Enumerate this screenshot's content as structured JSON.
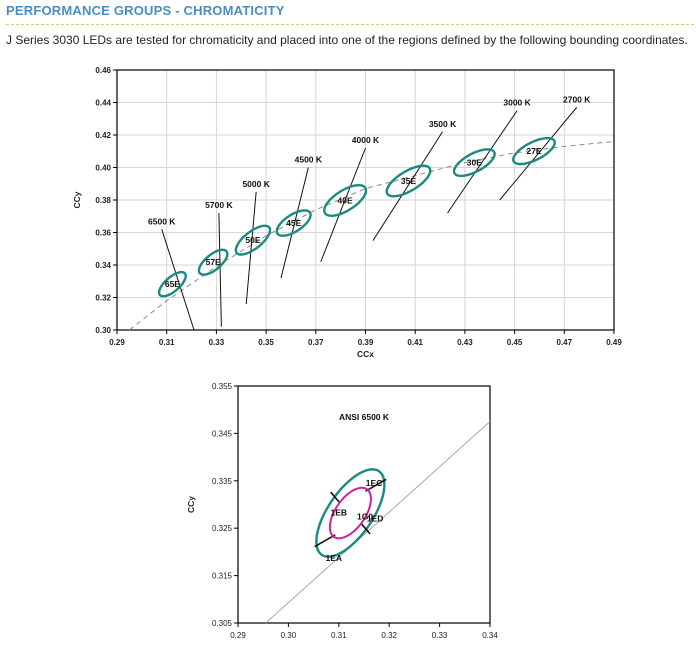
{
  "header": {
    "title": "PERFORMANCE GROUPS - CHROMATICITY"
  },
  "intro": {
    "text": "J Series 3030 LEDs are tested for chromaticity and placed into one of the regions defined by the following bounding coordinates."
  },
  "colors": {
    "accent": "#4a8dc3",
    "teal": "#1a8a82",
    "magenta": "#d0219a",
    "grid": "#d6d6d6"
  },
  "chart_data": [
    {
      "type": "scatter",
      "title": "",
      "xlabel": "CCx",
      "ylabel": "CCy",
      "xlim": [
        0.29,
        0.49
      ],
      "ylim": [
        0.3,
        0.46
      ],
      "xticks": [
        0.29,
        0.31,
        0.33,
        0.35,
        0.37,
        0.39,
        0.41,
        0.43,
        0.45,
        0.47,
        0.49
      ],
      "xtick_labels": [
        "0.29",
        "0.31",
        "0.33",
        "0.35",
        "0.37",
        "0.39",
        "0.41",
        "0.43",
        "0.45",
        "0.47",
        "0.49"
      ],
      "yticks": [
        0.3,
        0.32,
        0.34,
        0.36,
        0.38,
        0.4,
        0.42,
        0.44,
        0.46
      ],
      "ytick_labels": [
        "0.30",
        "0.32",
        "0.34",
        "0.36",
        "0.38",
        "0.40",
        "0.42",
        "0.44",
        "0.46"
      ],
      "grid": true,
      "bins": [
        {
          "name": "65E",
          "cx": 0.3123,
          "cy": 0.3282,
          "a": 0.0085,
          "b": 0.0034,
          "angle": 58
        },
        {
          "name": "57E",
          "cx": 0.3287,
          "cy": 0.3417,
          "a": 0.0088,
          "b": 0.0037,
          "angle": 57
        },
        {
          "name": "50E",
          "cx": 0.3447,
          "cy": 0.3553,
          "a": 0.0104,
          "b": 0.0042,
          "angle": 55
        },
        {
          "name": "45E",
          "cx": 0.3611,
          "cy": 0.3658,
          "a": 0.0094,
          "b": 0.0043,
          "angle": 51
        },
        {
          "name": "40E",
          "cx": 0.3818,
          "cy": 0.3797,
          "a": 0.0115,
          "b": 0.0052,
          "angle": 50
        },
        {
          "name": "35E",
          "cx": 0.4073,
          "cy": 0.3917,
          "a": 0.0118,
          "b": 0.0051,
          "angle": 48
        },
        {
          "name": "30E",
          "cx": 0.4338,
          "cy": 0.403,
          "a": 0.0105,
          "b": 0.0048,
          "angle": 45
        },
        {
          "name": "27E",
          "cx": 0.4578,
          "cy": 0.4101,
          "a": 0.0105,
          "b": 0.0048,
          "angle": 43
        }
      ],
      "blackbody_locus": [
        [
          0.295,
          0.3
        ],
        [
          0.31,
          0.318
        ],
        [
          0.33,
          0.339
        ],
        [
          0.35,
          0.358
        ],
        [
          0.37,
          0.374
        ],
        [
          0.39,
          0.387
        ],
        [
          0.41,
          0.395
        ],
        [
          0.43,
          0.403
        ],
        [
          0.45,
          0.409
        ],
        [
          0.47,
          0.413
        ],
        [
          0.49,
          0.416
        ]
      ],
      "cct_labels": [
        {
          "text": "6500 K",
          "line": [
            [
              0.321,
              0.3
            ],
            [
              0.308,
              0.362
            ]
          ]
        },
        {
          "text": "5700 K",
          "line": [
            [
              0.332,
              0.302
            ],
            [
              0.331,
              0.372
            ]
          ]
        },
        {
          "text": "5000 K",
          "line": [
            [
              0.342,
              0.316
            ],
            [
              0.346,
              0.385
            ]
          ]
        },
        {
          "text": "4500 K",
          "line": [
            [
              0.356,
              0.332
            ],
            [
              0.367,
              0.4
            ]
          ]
        },
        {
          "text": "4000 K",
          "line": [
            [
              0.372,
              0.342
            ],
            [
              0.39,
              0.412
            ]
          ]
        },
        {
          "text": "3500 K",
          "line": [
            [
              0.393,
              0.355
            ],
            [
              0.421,
              0.422
            ]
          ]
        },
        {
          "text": "3000 K",
          "line": [
            [
              0.423,
              0.372
            ],
            [
              0.451,
              0.435
            ]
          ]
        },
        {
          "text": "2700 K",
          "line": [
            [
              0.444,
              0.38
            ],
            [
              0.475,
              0.437
            ]
          ]
        }
      ]
    },
    {
      "type": "scatter",
      "title": "ANSI 6500 K",
      "xlabel": "",
      "ylabel": "CCy",
      "xlim": [
        0.29,
        0.34
      ],
      "ylim": [
        0.305,
        0.355
      ],
      "xticks": [
        0.29,
        0.3,
        0.31,
        0.32,
        0.33,
        0.34
      ],
      "xtick_labels": [
        "0.29",
        "0.30",
        "0.31",
        "0.32",
        "0.33",
        "0.34"
      ],
      "yticks": [
        0.305,
        0.315,
        0.325,
        0.335,
        0.345,
        0.355
      ],
      "ytick_labels": [
        "0.305",
        "0.315",
        "0.325",
        "0.335",
        "0.345",
        "0.355"
      ],
      "grid": false,
      "outer_ellipse": {
        "cx": 0.3123,
        "cy": 0.3282,
        "a": 0.0105,
        "b": 0.0045,
        "angle": 58
      },
      "inner_ellipse": {
        "name": "1G0",
        "cx": 0.3123,
        "cy": 0.3282,
        "a": 0.006,
        "b": 0.003,
        "angle": 58
      },
      "subbins": [
        "1EA",
        "1EB",
        "1EC",
        "1ED"
      ],
      "subbin_positions": [
        [
          0.309,
          0.3187
        ],
        [
          0.31,
          0.3283
        ],
        [
          0.317,
          0.3345
        ],
        [
          0.3172,
          0.327
        ]
      ],
      "center_label_pos": [
        0.3152,
        0.3275
      ],
      "divider_lines": [
        [
          [
            0.3052,
            0.3211
          ],
          [
            0.3093,
            0.3236
          ]
        ],
        [
          [
            0.3153,
            0.3328
          ],
          [
            0.3194,
            0.3353
          ]
        ],
        [
          [
            0.3084,
            0.3326
          ],
          [
            0.3101,
            0.3305
          ]
        ],
        [
          [
            0.3145,
            0.3259
          ],
          [
            0.3162,
            0.3238
          ]
        ]
      ],
      "reference_line": [
        [
          0.2955,
          0.305
        ],
        [
          0.34,
          0.3475
        ]
      ]
    }
  ]
}
